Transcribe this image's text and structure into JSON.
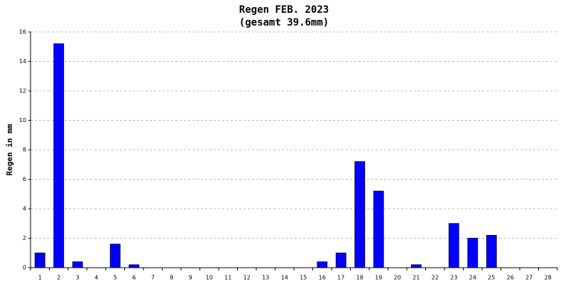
{
  "chart_data": {
    "type": "bar",
    "title": "Regen FEB. 2023",
    "subtitle": "(gesamt 39.6mm)",
    "y_label": "Regen in mm",
    "categories": [
      "1",
      "2",
      "3",
      "4",
      "5",
      "6",
      "7",
      "8",
      "9",
      "10",
      "11",
      "12",
      "13",
      "14",
      "15",
      "16",
      "17",
      "18",
      "19",
      "20",
      "21",
      "22",
      "23",
      "24",
      "25",
      "26",
      "27",
      "28"
    ],
    "values": [
      1.0,
      15.2,
      0.4,
      0,
      1.6,
      0.2,
      0,
      0,
      0,
      0,
      0,
      0,
      0,
      0,
      0,
      0.4,
      1.0,
      7.2,
      5.2,
      0,
      0.2,
      0,
      3.0,
      2.0,
      2.2,
      0,
      0,
      0
    ],
    "color": "#0000ff",
    "ylim": [
      0,
      16
    ],
    "yticks": [
      0,
      2,
      4,
      6,
      8,
      10,
      12,
      14,
      16
    ],
    "grid": true
  }
}
